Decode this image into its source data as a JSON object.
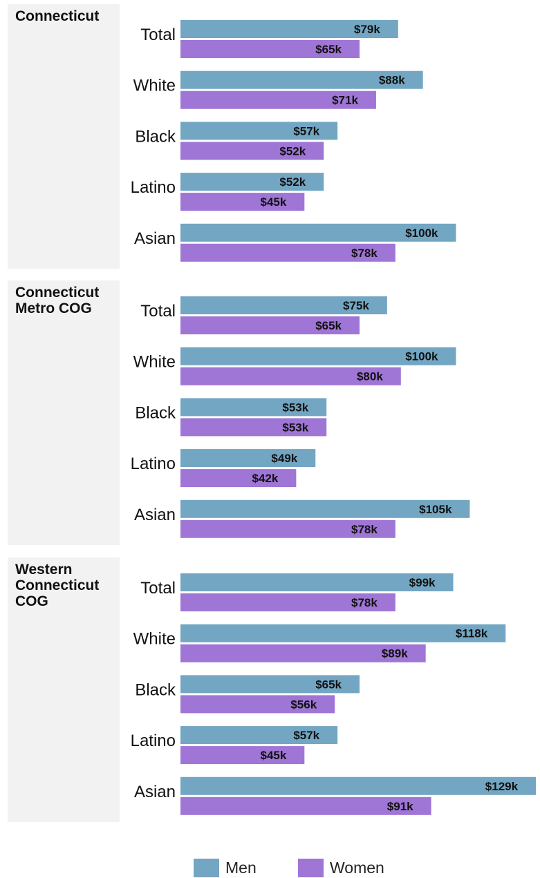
{
  "chart_data": {
    "type": "bar",
    "orientation": "horizontal",
    "categories": [
      "Total",
      "White",
      "Black",
      "Latino",
      "Asian"
    ],
    "series_names": [
      "Men",
      "Women"
    ],
    "colors": {
      "Men": "#72a6c3",
      "Women": "#9f75d6",
      "panel_bg": "#f2f2f2"
    },
    "value_label_prefix": "$",
    "value_label_suffix": "k",
    "panels": [
      {
        "title": "Connecticut",
        "series": [
          {
            "name": "Men",
            "values": [
              79,
              88,
              57,
              52,
              100
            ],
            "labels": [
              "$79k",
              "$88k",
              "$57k",
              "$52k",
              "$100k"
            ]
          },
          {
            "name": "Women",
            "values": [
              65,
              71,
              52,
              45,
              78
            ],
            "labels": [
              "$65k",
              "$71k",
              "$52k",
              "$45k",
              "$78k"
            ]
          }
        ]
      },
      {
        "title": "Connecticut\nMetro COG",
        "series": [
          {
            "name": "Men",
            "values": [
              75,
              100,
              53,
              49,
              105
            ],
            "labels": [
              "$75k",
              "$100k",
              "$53k",
              "$49k",
              "$105k"
            ]
          },
          {
            "name": "Women",
            "values": [
              65,
              80,
              53,
              42,
              78
            ],
            "labels": [
              "$65k",
              "$80k",
              "$53k",
              "$42k",
              "$78k"
            ]
          }
        ]
      },
      {
        "title": "Western\nConnecticut\nCOG",
        "series": [
          {
            "name": "Men",
            "values": [
              99,
              118,
              65,
              57,
              129
            ],
            "labels": [
              "$99k",
              "$118k",
              "$65k",
              "$57k",
              "$129k"
            ]
          },
          {
            "name": "Women",
            "values": [
              78,
              89,
              56,
              45,
              91
            ],
            "labels": [
              "$78k",
              "$89k",
              "$56k",
              "$45k",
              "$91k"
            ]
          }
        ]
      }
    ],
    "xlim": [
      0,
      129
    ],
    "legend": {
      "position": "bottom",
      "entries": [
        "Men",
        "Women"
      ]
    },
    "grid": false
  }
}
